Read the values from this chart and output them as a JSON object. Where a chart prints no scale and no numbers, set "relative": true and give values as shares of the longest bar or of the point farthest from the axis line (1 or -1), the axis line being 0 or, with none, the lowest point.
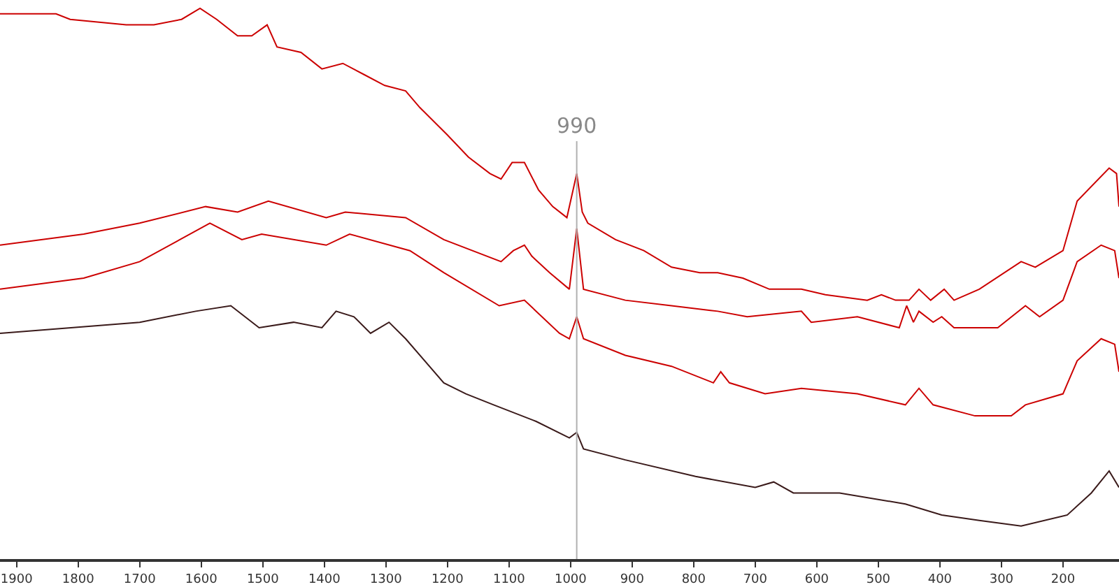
{
  "chart_data": {
    "type": "line",
    "relative": true,
    "xlim": [
      1927,
      109
    ],
    "xticks": [
      1900,
      1800,
      1700,
      1600,
      1500,
      1400,
      1300,
      1200,
      1100,
      1000,
      900,
      800,
      700,
      600,
      500,
      400,
      300,
      200
    ],
    "grid": false,
    "marker": "none",
    "line_style": "solid",
    "tick_labels": "x",
    "ref_lines": [
      {
        "axis": "x",
        "value": 990,
        "label": "990",
        "color": "#b0b0b0"
      }
    ],
    "series": [
      {
        "color": "#cc0000",
        "x": [
          1927,
          1836,
          1813,
          1722,
          1677,
          1632,
          1602,
          1575,
          1541,
          1518,
          1493,
          1477,
          1438,
          1404,
          1370,
          1336,
          1302,
          1268,
          1245,
          1200,
          1166,
          1131,
          1113,
          1095,
          1075,
          1052,
          1029,
          1006,
          990,
          981,
          972,
          927,
          881,
          836,
          790,
          761,
          720,
          677,
          625,
          586,
          518,
          495,
          472,
          450,
          434,
          415,
          393,
          377,
          336,
          268,
          245,
          200,
          177,
          125,
          113,
          109
        ],
        "values": [
          0.99,
          0.99,
          0.98,
          0.97,
          0.97,
          0.98,
          1.0,
          0.98,
          0.95,
          0.95,
          0.97,
          0.93,
          0.92,
          0.89,
          0.9,
          0.88,
          0.86,
          0.85,
          0.82,
          0.77,
          0.73,
          0.7,
          0.69,
          0.72,
          0.72,
          0.67,
          0.64,
          0.62,
          0.7,
          0.63,
          0.61,
          0.58,
          0.56,
          0.53,
          0.52,
          0.52,
          0.51,
          0.49,
          0.49,
          0.48,
          0.47,
          0.48,
          0.47,
          0.47,
          0.49,
          0.47,
          0.49,
          0.47,
          0.49,
          0.54,
          0.53,
          0.56,
          0.65,
          0.71,
          0.7,
          0.64
        ]
      },
      {
        "color": "#cc0000",
        "x": [
          1927,
          1791,
          1700,
          1593,
          1541,
          1491,
          1397,
          1366,
          1268,
          1206,
          1113,
          1093,
          1075,
          1063,
          1034,
          1002,
          990,
          979,
          911,
          836,
          761,
          713,
          625,
          609,
          534,
          466,
          454,
          443,
          434,
          411,
          397,
          377,
          306,
          261,
          238,
          200,
          177,
          138,
          116,
          109
        ],
        "values": [
          0.57,
          0.59,
          0.61,
          0.64,
          0.63,
          0.65,
          0.62,
          0.63,
          0.62,
          0.58,
          0.54,
          0.56,
          0.57,
          0.55,
          0.52,
          0.49,
          0.6,
          0.49,
          0.47,
          0.46,
          0.45,
          0.44,
          0.45,
          0.43,
          0.44,
          0.42,
          0.46,
          0.43,
          0.45,
          0.43,
          0.44,
          0.42,
          0.42,
          0.46,
          0.44,
          0.47,
          0.54,
          0.57,
          0.56,
          0.51
        ]
      },
      {
        "color": "#cc0000",
        "x": [
          1927,
          1791,
          1700,
          1586,
          1534,
          1502,
          1397,
          1359,
          1261,
          1206,
          1116,
          1075,
          1018,
          1002,
          990,
          979,
          911,
          836,
          768,
          756,
          742,
          684,
          625,
          534,
          456,
          434,
          411,
          343,
          284,
          261,
          200,
          177,
          138,
          116,
          109
        ],
        "values": [
          0.49,
          0.51,
          0.54,
          0.61,
          0.58,
          0.59,
          0.57,
          0.59,
          0.56,
          0.52,
          0.46,
          0.47,
          0.41,
          0.4,
          0.44,
          0.4,
          0.37,
          0.35,
          0.32,
          0.34,
          0.32,
          0.3,
          0.31,
          0.3,
          0.28,
          0.31,
          0.28,
          0.26,
          0.26,
          0.28,
          0.3,
          0.36,
          0.4,
          0.39,
          0.34
        ]
      },
      {
        "color": "#3a1a1a",
        "x": [
          1927,
          1700,
          1609,
          1552,
          1506,
          1450,
          1404,
          1381,
          1352,
          1325,
          1295,
          1268,
          1206,
          1170,
          1125,
          1056,
          1002,
          990,
          979,
          911,
          797,
          700,
          670,
          638,
          563,
          456,
          397,
          336,
          268,
          193,
          154,
          125,
          109
        ],
        "values": [
          0.41,
          0.43,
          0.45,
          0.46,
          0.42,
          0.43,
          0.42,
          0.45,
          0.44,
          0.41,
          0.43,
          0.4,
          0.32,
          0.3,
          0.28,
          0.25,
          0.22,
          0.23,
          0.2,
          0.18,
          0.15,
          0.13,
          0.14,
          0.12,
          0.12,
          0.1,
          0.08,
          0.07,
          0.06,
          0.08,
          0.12,
          0.16,
          0.13
        ]
      }
    ]
  }
}
